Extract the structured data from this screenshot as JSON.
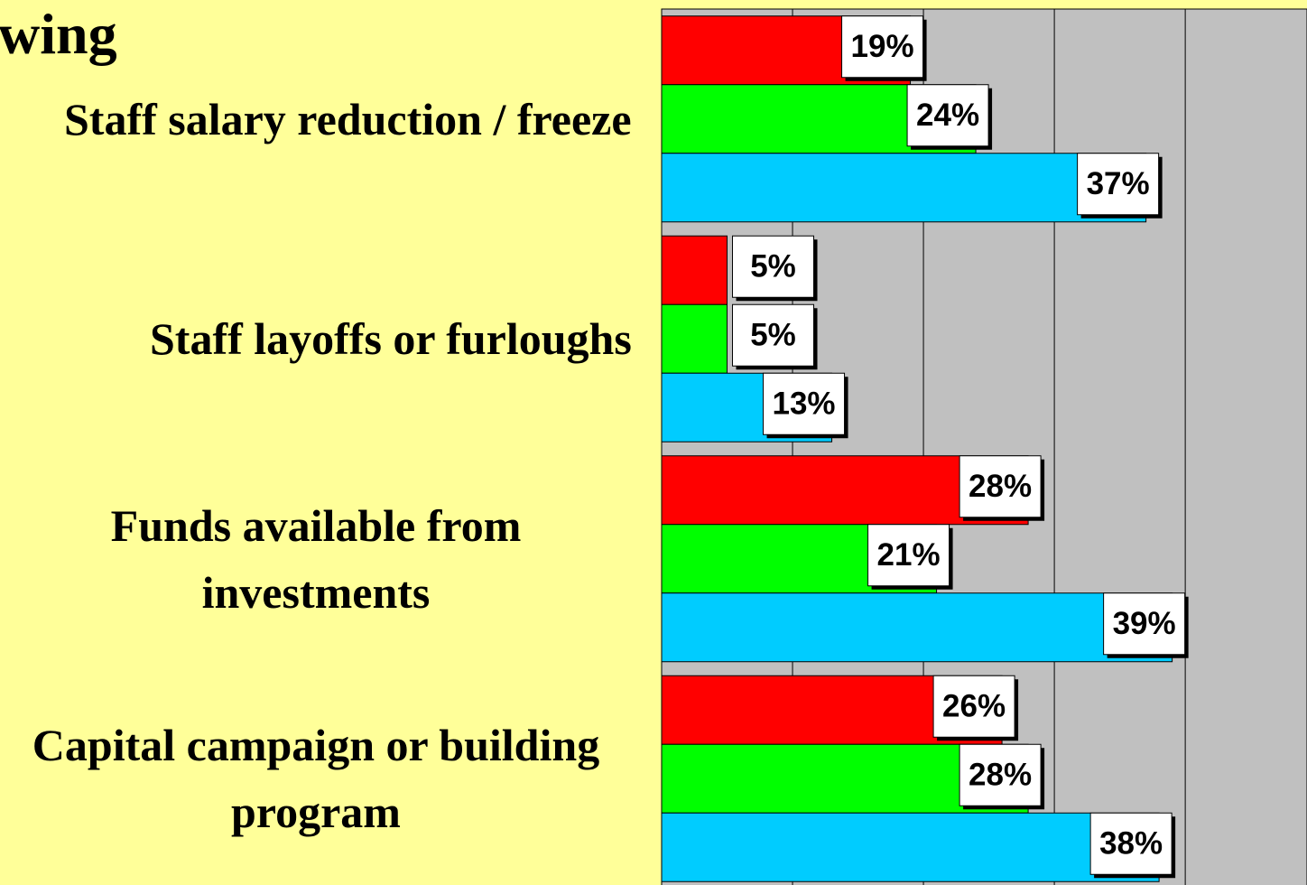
{
  "chart_data": {
    "type": "bar",
    "title": "wing",
    "categories": [
      "Staff salary reduction / freeze",
      "Staff layoffs or furloughs",
      "Funds available from investments",
      "Capital campaign or building program"
    ],
    "series": [
      {
        "color": "#ff0000",
        "values": [
          19,
          5,
          28,
          26
        ],
        "value_labels": [
          "19%",
          "5%",
          "28%",
          "26%"
        ]
      },
      {
        "color": "#00ff00",
        "values": [
          24,
          5,
          21,
          28
        ],
        "value_labels": [
          "24%",
          "5%",
          "21%",
          "28%"
        ]
      },
      {
        "color": "#00ccff",
        "values": [
          37,
          13,
          39,
          38
        ],
        "value_labels": [
          "37%",
          "13%",
          "39%",
          "38%"
        ]
      }
    ],
    "xlim": [
      0,
      49.3
    ],
    "xticks": [
      0,
      10,
      20,
      30,
      40
    ],
    "grid": true
  }
}
